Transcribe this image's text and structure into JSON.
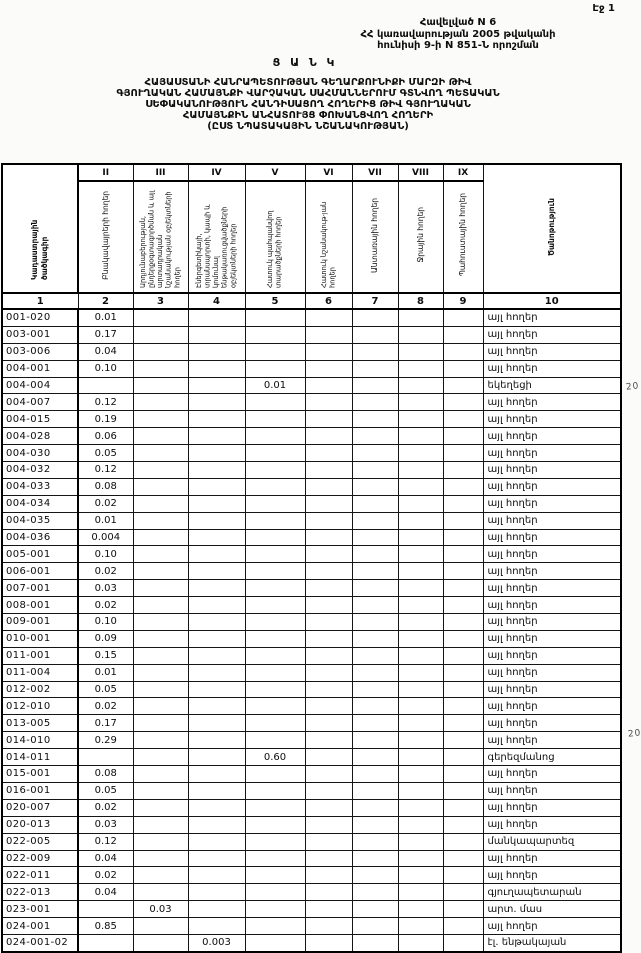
{
  "page": {
    "page_number": "Էջ 1",
    "appendix_lines": [
      "Հավելված N 6",
      "ՀՀ կառավարության 2005 թվականի",
      "հունիսի 9-ի N 851-Ն որոշման"
    ],
    "list_heading": "Ց Ա Ն Կ",
    "title_lines": [
      "ՀԱՅԱՍՏԱՆԻ ՀԱՆՐԱՊԵՏՈՒԹՅԱՆ ԳԵՂԱՐՔՈՒՆԻՔԻ ՄԱՐԶԻ ԹԻՎ",
      "ԳՅՈՒՂԱԿԱՆ ՀԱՄԱՅՆՔԻ ՎԱՐՉԱԿԱՆ ՍԱՀՄԱՆՆԵՐՈՒՄ ԳՏՆՎՈՂ ՊԵՏԱԿԱՆ",
      "ՍԵՓԱԿԱՆՈՒԹՅՈՒՆ ՀԱՆԴԻՍԱՑՈՂ ՀՈՂԵՐԻՑ ԹԻՎ ԳՅՈՒՂԱԿԱՆ",
      "ՀԱՄԱՅՆՔԻՆ ԱՆՀԱՏՈՒՅՑ ՓՈԽԱՆՑՎՈՂ ՀՈՂԵՐԻ",
      "(ԸՍՏ ՆՊԱՏԱԿԱՅԻՆ ՆՇԱՆԱԿՈՒԹՅԱՆ)"
    ]
  },
  "table": {
    "roman_numerals": [
      "II",
      "III",
      "IV",
      "V",
      "VI",
      "VII",
      "VIII",
      "IX"
    ],
    "column_headers": [
      "Կադաստրային ծածկագիր",
      "Բնակավայրերի հողեր",
      "Արդյունաբերության, ընդերքօգտագործման և այլ արտադրական նշանակության օբյեկտների հողեր",
      "Էներգետիկայի, տրանսպորտի, կապի և կոմունալ ենթակառուցվածքների օբյեկտների հողեր",
      "Հատուկ պահպանվող տարածքների հողեր",
      "Հատուկ նշանակութ-յան հողեր",
      "Անտառային հողեր",
      "Ջրային հողեր",
      "Պահուստային հողեր",
      "Ծանոթություն"
    ],
    "column_numbers": [
      "1",
      "2",
      "3",
      "4",
      "5",
      "6",
      "7",
      "8",
      "9",
      "10"
    ],
    "rows": [
      {
        "code": "001-020",
        "values": [
          "0.01",
          "",
          "",
          "",
          "",
          "",
          "",
          ""
        ],
        "note": "այլ հողեր"
      },
      {
        "code": "003-001",
        "values": [
          "0.17",
          "",
          "",
          "",
          "",
          "",
          "",
          ""
        ],
        "note": "այլ հողեր"
      },
      {
        "code": "003-006",
        "values": [
          "0.04",
          "",
          "",
          "",
          "",
          "",
          "",
          ""
        ],
        "note": "այլ հողեր"
      },
      {
        "code": "004-001",
        "values": [
          "0.10",
          "",
          "",
          "",
          "",
          "",
          "",
          ""
        ],
        "note": "այլ հողեր"
      },
      {
        "code": "004-004",
        "values": [
          "",
          "",
          "",
          "0.01",
          "",
          "",
          "",
          ""
        ],
        "note": "եկեղեցի"
      },
      {
        "code": "004-007",
        "values": [
          "0.12",
          "",
          "",
          "",
          "",
          "",
          "",
          ""
        ],
        "note": "այլ հողեր"
      },
      {
        "code": "004-015",
        "values": [
          "0.19",
          "",
          "",
          "",
          "",
          "",
          "",
          ""
        ],
        "note": "այլ հողեր"
      },
      {
        "code": "004-028",
        "values": [
          "0.06",
          "",
          "",
          "",
          "",
          "",
          "",
          ""
        ],
        "note": "այլ հողեր"
      },
      {
        "code": "004-030",
        "values": [
          "0.05",
          "",
          "",
          "",
          "",
          "",
          "",
          ""
        ],
        "note": "այլ հողեր"
      },
      {
        "code": "004-032",
        "values": [
          "0.12",
          "",
          "",
          "",
          "",
          "",
          "",
          ""
        ],
        "note": "այլ հողեր"
      },
      {
        "code": "004-033",
        "values": [
          "0.08",
          "",
          "",
          "",
          "",
          "",
          "",
          ""
        ],
        "note": "այլ հողեր"
      },
      {
        "code": "004-034",
        "values": [
          "0.02",
          "",
          "",
          "",
          "",
          "",
          "",
          ""
        ],
        "note": "այլ հողեր"
      },
      {
        "code": "004-035",
        "values": [
          "0.01",
          "",
          "",
          "",
          "",
          "",
          "",
          ""
        ],
        "note": "այլ հողեր"
      },
      {
        "code": "004-036",
        "values": [
          "0.004",
          "",
          "",
          "",
          "",
          "",
          "",
          ""
        ],
        "note": "այլ հողեր"
      },
      {
        "code": "005-001",
        "values": [
          "0.10",
          "",
          "",
          "",
          "",
          "",
          "",
          ""
        ],
        "note": "այլ հողեր"
      },
      {
        "code": "006-001",
        "values": [
          "0.02",
          "",
          "",
          "",
          "",
          "",
          "",
          ""
        ],
        "note": "այլ հողեր"
      },
      {
        "code": "007-001",
        "values": [
          "0.03",
          "",
          "",
          "",
          "",
          "",
          "",
          ""
        ],
        "note": "այլ հողեր"
      },
      {
        "code": "008-001",
        "values": [
          "0.02",
          "",
          "",
          "",
          "",
          "",
          "",
          ""
        ],
        "note": "այլ հողեր"
      },
      {
        "code": "009-001",
        "values": [
          "0.10",
          "",
          "",
          "",
          "",
          "",
          "",
          ""
        ],
        "note": "այլ հողեր"
      },
      {
        "code": "010-001",
        "values": [
          "0.09",
          "",
          "",
          "",
          "",
          "",
          "",
          ""
        ],
        "note": "այլ հողեր"
      },
      {
        "code": "011-001",
        "values": [
          "0.15",
          "",
          "",
          "",
          "",
          "",
          "",
          ""
        ],
        "note": "այլ հողեր"
      },
      {
        "code": "011-004",
        "values": [
          "0.01",
          "",
          "",
          "",
          "",
          "",
          "",
          ""
        ],
        "note": "այլ հողեր"
      },
      {
        "code": "012-002",
        "values": [
          "0.05",
          "",
          "",
          "",
          "",
          "",
          "",
          ""
        ],
        "note": "այլ հողեր"
      },
      {
        "code": "012-010",
        "values": [
          "0.02",
          "",
          "",
          "",
          "",
          "",
          "",
          ""
        ],
        "note": "այլ հողեր"
      },
      {
        "code": "013-005",
        "values": [
          "0.17",
          "",
          "",
          "",
          "",
          "",
          "",
          ""
        ],
        "note": "այլ հողեր"
      },
      {
        "code": "014-010",
        "values": [
          "0.29",
          "",
          "",
          "",
          "",
          "",
          "",
          ""
        ],
        "note": "այլ հողեր"
      },
      {
        "code": "014-011",
        "values": [
          "",
          "",
          "",
          "0.60",
          "",
          "",
          "",
          ""
        ],
        "note": "գերեզմանոց"
      },
      {
        "code": "015-001",
        "values": [
          "0.08",
          "",
          "",
          "",
          "",
          "",
          "",
          ""
        ],
        "note": "այլ հողեր"
      },
      {
        "code": "016-001",
        "values": [
          "0.05",
          "",
          "",
          "",
          "",
          "",
          "",
          ""
        ],
        "note": "այլ հողեր"
      },
      {
        "code": "020-007",
        "values": [
          "0.02",
          "",
          "",
          "",
          "",
          "",
          "",
          ""
        ],
        "note": "այլ հողեր"
      },
      {
        "code": "020-013",
        "values": [
          "0.03",
          "",
          "",
          "",
          "",
          "",
          "",
          ""
        ],
        "note": "այլ հողեր"
      },
      {
        "code": "022-005",
        "values": [
          "0.12",
          "",
          "",
          "",
          "",
          "",
          "",
          ""
        ],
        "note": "մանկապարտեզ"
      },
      {
        "code": "022-009",
        "values": [
          "0.04",
          "",
          "",
          "",
          "",
          "",
          "",
          ""
        ],
        "note": "այլ հողեր"
      },
      {
        "code": "022-011",
        "values": [
          "0.02",
          "",
          "",
          "",
          "",
          "",
          "",
          ""
        ],
        "note": "այլ հողեր"
      },
      {
        "code": "022-013",
        "values": [
          "0.04",
          "",
          "",
          "",
          "",
          "",
          "",
          ""
        ],
        "note": "գյուղապետարան"
      },
      {
        "code": "023-001",
        "values": [
          "",
          "0.03",
          "",
          "",
          "",
          "",
          "",
          ""
        ],
        "note": "արտ. մաս"
      },
      {
        "code": "024-001",
        "values": [
          "0.85",
          "",
          "",
          "",
          "",
          "",
          "",
          ""
        ],
        "note": "այլ հողեր"
      },
      {
        "code": "024-001-02",
        "values": [
          "",
          "",
          "0.003",
          "",
          "",
          "",
          "",
          ""
        ],
        "note": "էլ. ենթակայան"
      }
    ]
  },
  "margin_marks": [
    {
      "text": "20"
    },
    {
      "text": "20"
    }
  ]
}
